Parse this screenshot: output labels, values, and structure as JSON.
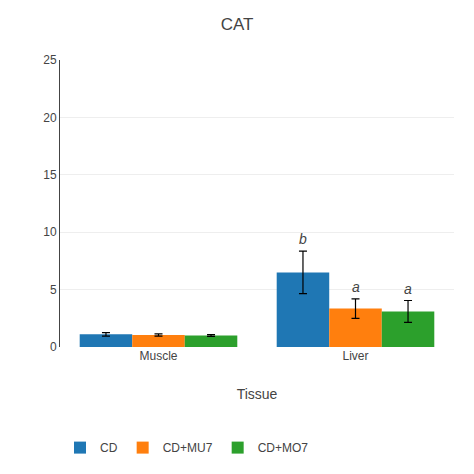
{
  "chart_data": {
    "type": "bar",
    "title": "CAT",
    "xlabel": "Tissue",
    "categories": [
      "Muscle",
      "Liver"
    ],
    "series": [
      {
        "name": "CD",
        "values": [
          1.1,
          6.5
        ],
        "errors": [
          0.15,
          1.85
        ],
        "annotations": [
          null,
          "b"
        ]
      },
      {
        "name": "CD+MU7",
        "values": [
          1.05,
          3.35
        ],
        "errors": [
          0.1,
          0.85
        ],
        "annotations": [
          null,
          "a"
        ]
      },
      {
        "name": "CD+MO7",
        "values": [
          1.0,
          3.1
        ],
        "errors": [
          0.08,
          0.95
        ],
        "annotations": [
          null,
          "a"
        ]
      }
    ],
    "ylim": [
      0,
      25
    ],
    "yticks": [
      0,
      5,
      10,
      15,
      20,
      25
    ],
    "grid": true,
    "legend": "bottom"
  }
}
